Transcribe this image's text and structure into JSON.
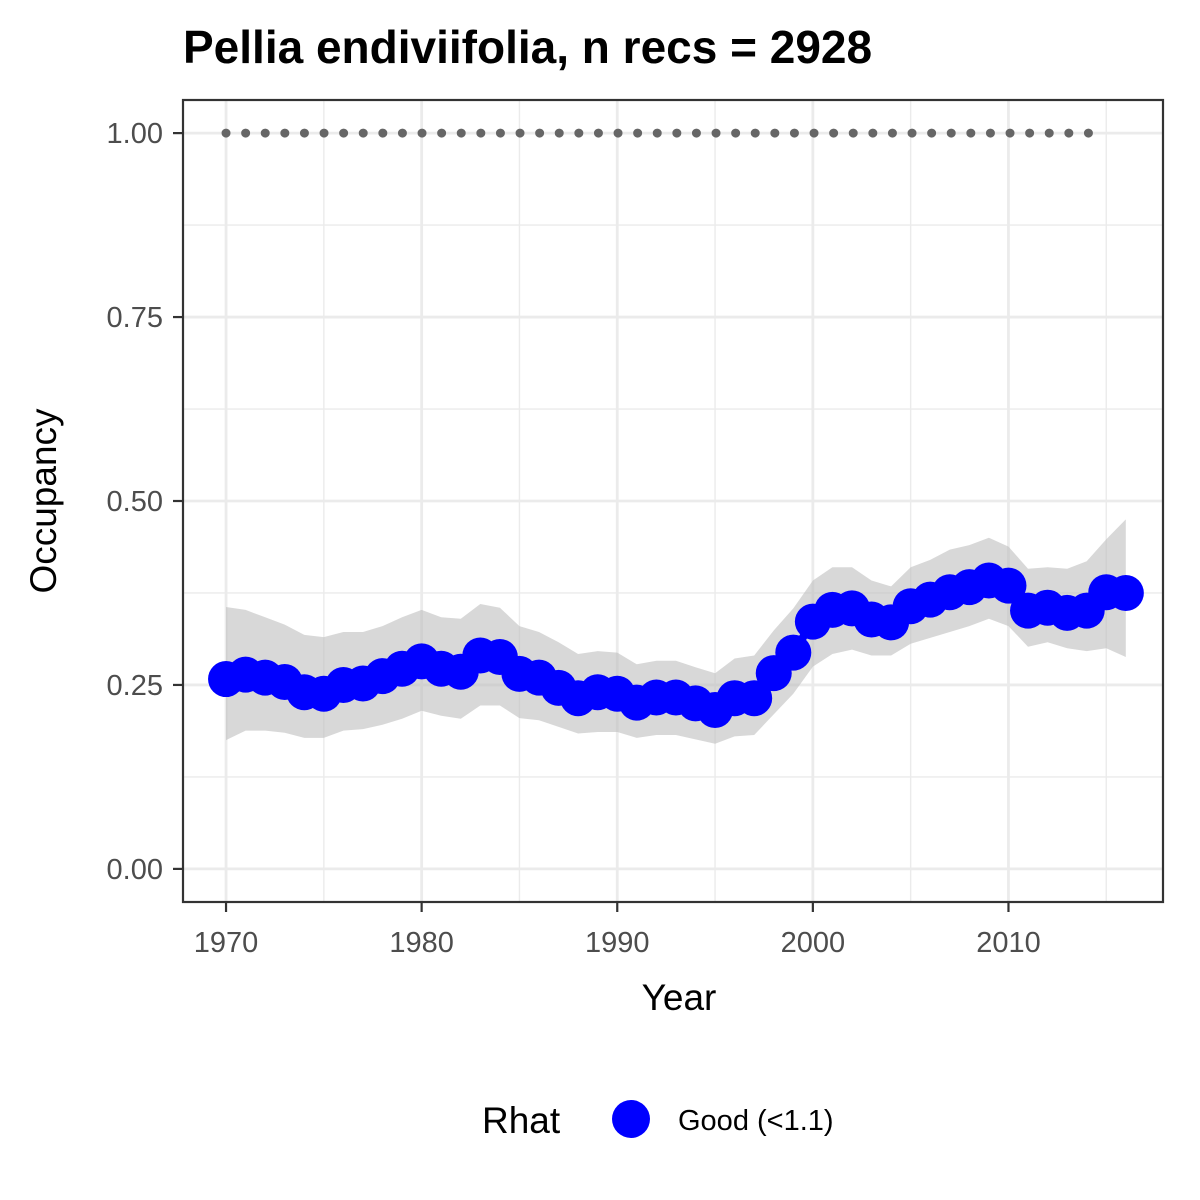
{
  "chart_data": {
    "type": "line",
    "title": "Pellia endiviifolia, n recs = 2928",
    "xlabel": "Year",
    "ylabel": "Occupancy",
    "xlim": [
      1967.8,
      2017.9
    ],
    "ylim": [
      -0.045,
      1.045
    ],
    "x_ticks": [
      1970,
      1980,
      1990,
      2000,
      2010
    ],
    "x_tick_labels": [
      "1970",
      "1980",
      "1990",
      "2000",
      "2010"
    ],
    "y_ticks": [
      0,
      0.25,
      0.5,
      0.75,
      1.0
    ],
    "y_tick_labels": [
      "0.00",
      "0.25",
      "0.50",
      "0.75",
      "1.00"
    ],
    "grid": true,
    "legend": {
      "position": "bottom",
      "title": "Rhat",
      "entries": [
        {
          "label": "Good (<1.1)",
          "color": "#0000ff"
        }
      ]
    },
    "colors": {
      "series": "#0000ff",
      "ribbon": "#bebebe",
      "reference": "#666666"
    },
    "x": [
      1970,
      1971,
      1972,
      1973,
      1974,
      1975,
      1976,
      1977,
      1978,
      1979,
      1980,
      1981,
      1982,
      1983,
      1984,
      1985,
      1986,
      1987,
      1988,
      1989,
      1990,
      1991,
      1992,
      1993,
      1994,
      1995,
      1996,
      1997,
      1998,
      1999,
      2000,
      2001,
      2002,
      2003,
      2004,
      2005,
      2006,
      2007,
      2008,
      2009,
      2010,
      2011,
      2012,
      2013,
      2014,
      2015,
      2016
    ],
    "series": [
      {
        "values": [
          0.258,
          0.264,
          0.26,
          0.254,
          0.24,
          0.238,
          0.25,
          0.252,
          0.262,
          0.272,
          0.282,
          0.272,
          0.268,
          0.29,
          0.288,
          0.265,
          0.26,
          0.246,
          0.232,
          0.24,
          0.238,
          0.226,
          0.233,
          0.233,
          0.225,
          0.216,
          0.232,
          0.232,
          0.266,
          0.294,
          0.336,
          0.352,
          0.354,
          0.339,
          0.335,
          0.357,
          0.366,
          0.376,
          0.383,
          0.392,
          0.385,
          0.351,
          0.355,
          0.348,
          0.351,
          0.376,
          0.375
        ],
        "lower": [
          0.175,
          0.188,
          0.188,
          0.185,
          0.178,
          0.178,
          0.188,
          0.19,
          0.196,
          0.204,
          0.215,
          0.208,
          0.204,
          0.222,
          0.222,
          0.205,
          0.202,
          0.193,
          0.184,
          0.186,
          0.186,
          0.178,
          0.182,
          0.182,
          0.176,
          0.17,
          0.18,
          0.182,
          0.21,
          0.238,
          0.275,
          0.292,
          0.298,
          0.29,
          0.29,
          0.306,
          0.314,
          0.322,
          0.33,
          0.34,
          0.33,
          0.302,
          0.308,
          0.3,
          0.296,
          0.3,
          0.288
        ],
        "upper": [
          0.356,
          0.352,
          0.342,
          0.332,
          0.318,
          0.315,
          0.322,
          0.322,
          0.33,
          0.342,
          0.352,
          0.342,
          0.34,
          0.36,
          0.355,
          0.33,
          0.322,
          0.308,
          0.292,
          0.296,
          0.294,
          0.278,
          0.283,
          0.283,
          0.274,
          0.266,
          0.286,
          0.29,
          0.324,
          0.354,
          0.392,
          0.41,
          0.41,
          0.392,
          0.384,
          0.41,
          0.42,
          0.434,
          0.44,
          0.45,
          0.438,
          0.408,
          0.41,
          0.408,
          0.418,
          0.448,
          0.475
        ]
      }
    ],
    "reference_line": {
      "y": 1.0,
      "x_start": 1970,
      "x_end": 2015
    }
  }
}
